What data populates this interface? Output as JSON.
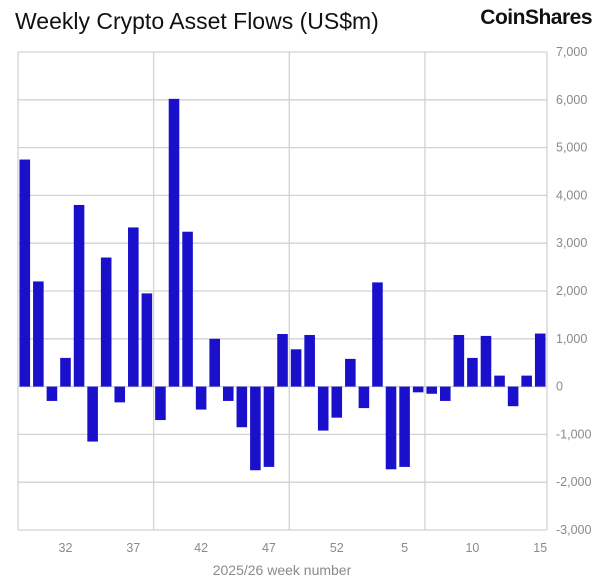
{
  "title": "Weekly Crypto Asset Flows (US$m)",
  "brand": "CoinShares",
  "chart_data": {
    "type": "bar",
    "title": "Weekly Crypto Asset Flows (US$m)",
    "xlabel": "2025/26 week number",
    "ylabel": "",
    "ylim": [
      -3000,
      7000
    ],
    "yticks": [
      7000,
      6000,
      5000,
      4000,
      3000,
      2000,
      1000,
      0,
      -1000,
      -2000,
      -3000
    ],
    "ytick_labels": [
      "7,000",
      "6,000",
      "5,000",
      "4,000",
      "3,000",
      "2,000",
      "1,000",
      "0",
      "-1,000",
      "-2,000",
      "-3,000"
    ],
    "grid": true,
    "color": "#1a10cc",
    "categories": [
      "29",
      "30",
      "31",
      "32",
      "33",
      "34",
      "35",
      "36",
      "37",
      "38",
      "39",
      "40",
      "41",
      "42",
      "43",
      "44",
      "45",
      "46",
      "47",
      "48",
      "49",
      "50",
      "51",
      "52",
      "1",
      "2",
      "3",
      "4",
      "5",
      "6",
      "7",
      "8",
      "9",
      "10",
      "11",
      "12",
      "13",
      "14",
      "15"
    ],
    "xtick_labels": [
      "32",
      "37",
      "42",
      "47",
      "52",
      "5",
      "10",
      "15"
    ],
    "values": [
      4750,
      2200,
      -300,
      600,
      3800,
      -1150,
      2700,
      -330,
      3330,
      1950,
      -700,
      6020,
      3240,
      -480,
      1000,
      -300,
      -850,
      -1750,
      -1680,
      1100,
      780,
      1080,
      -920,
      -650,
      580,
      -450,
      2180,
      -1730,
      -1680,
      -120,
      -150,
      -300,
      1080,
      600,
      1060,
      230,
      -410,
      230,
      1110
    ]
  }
}
